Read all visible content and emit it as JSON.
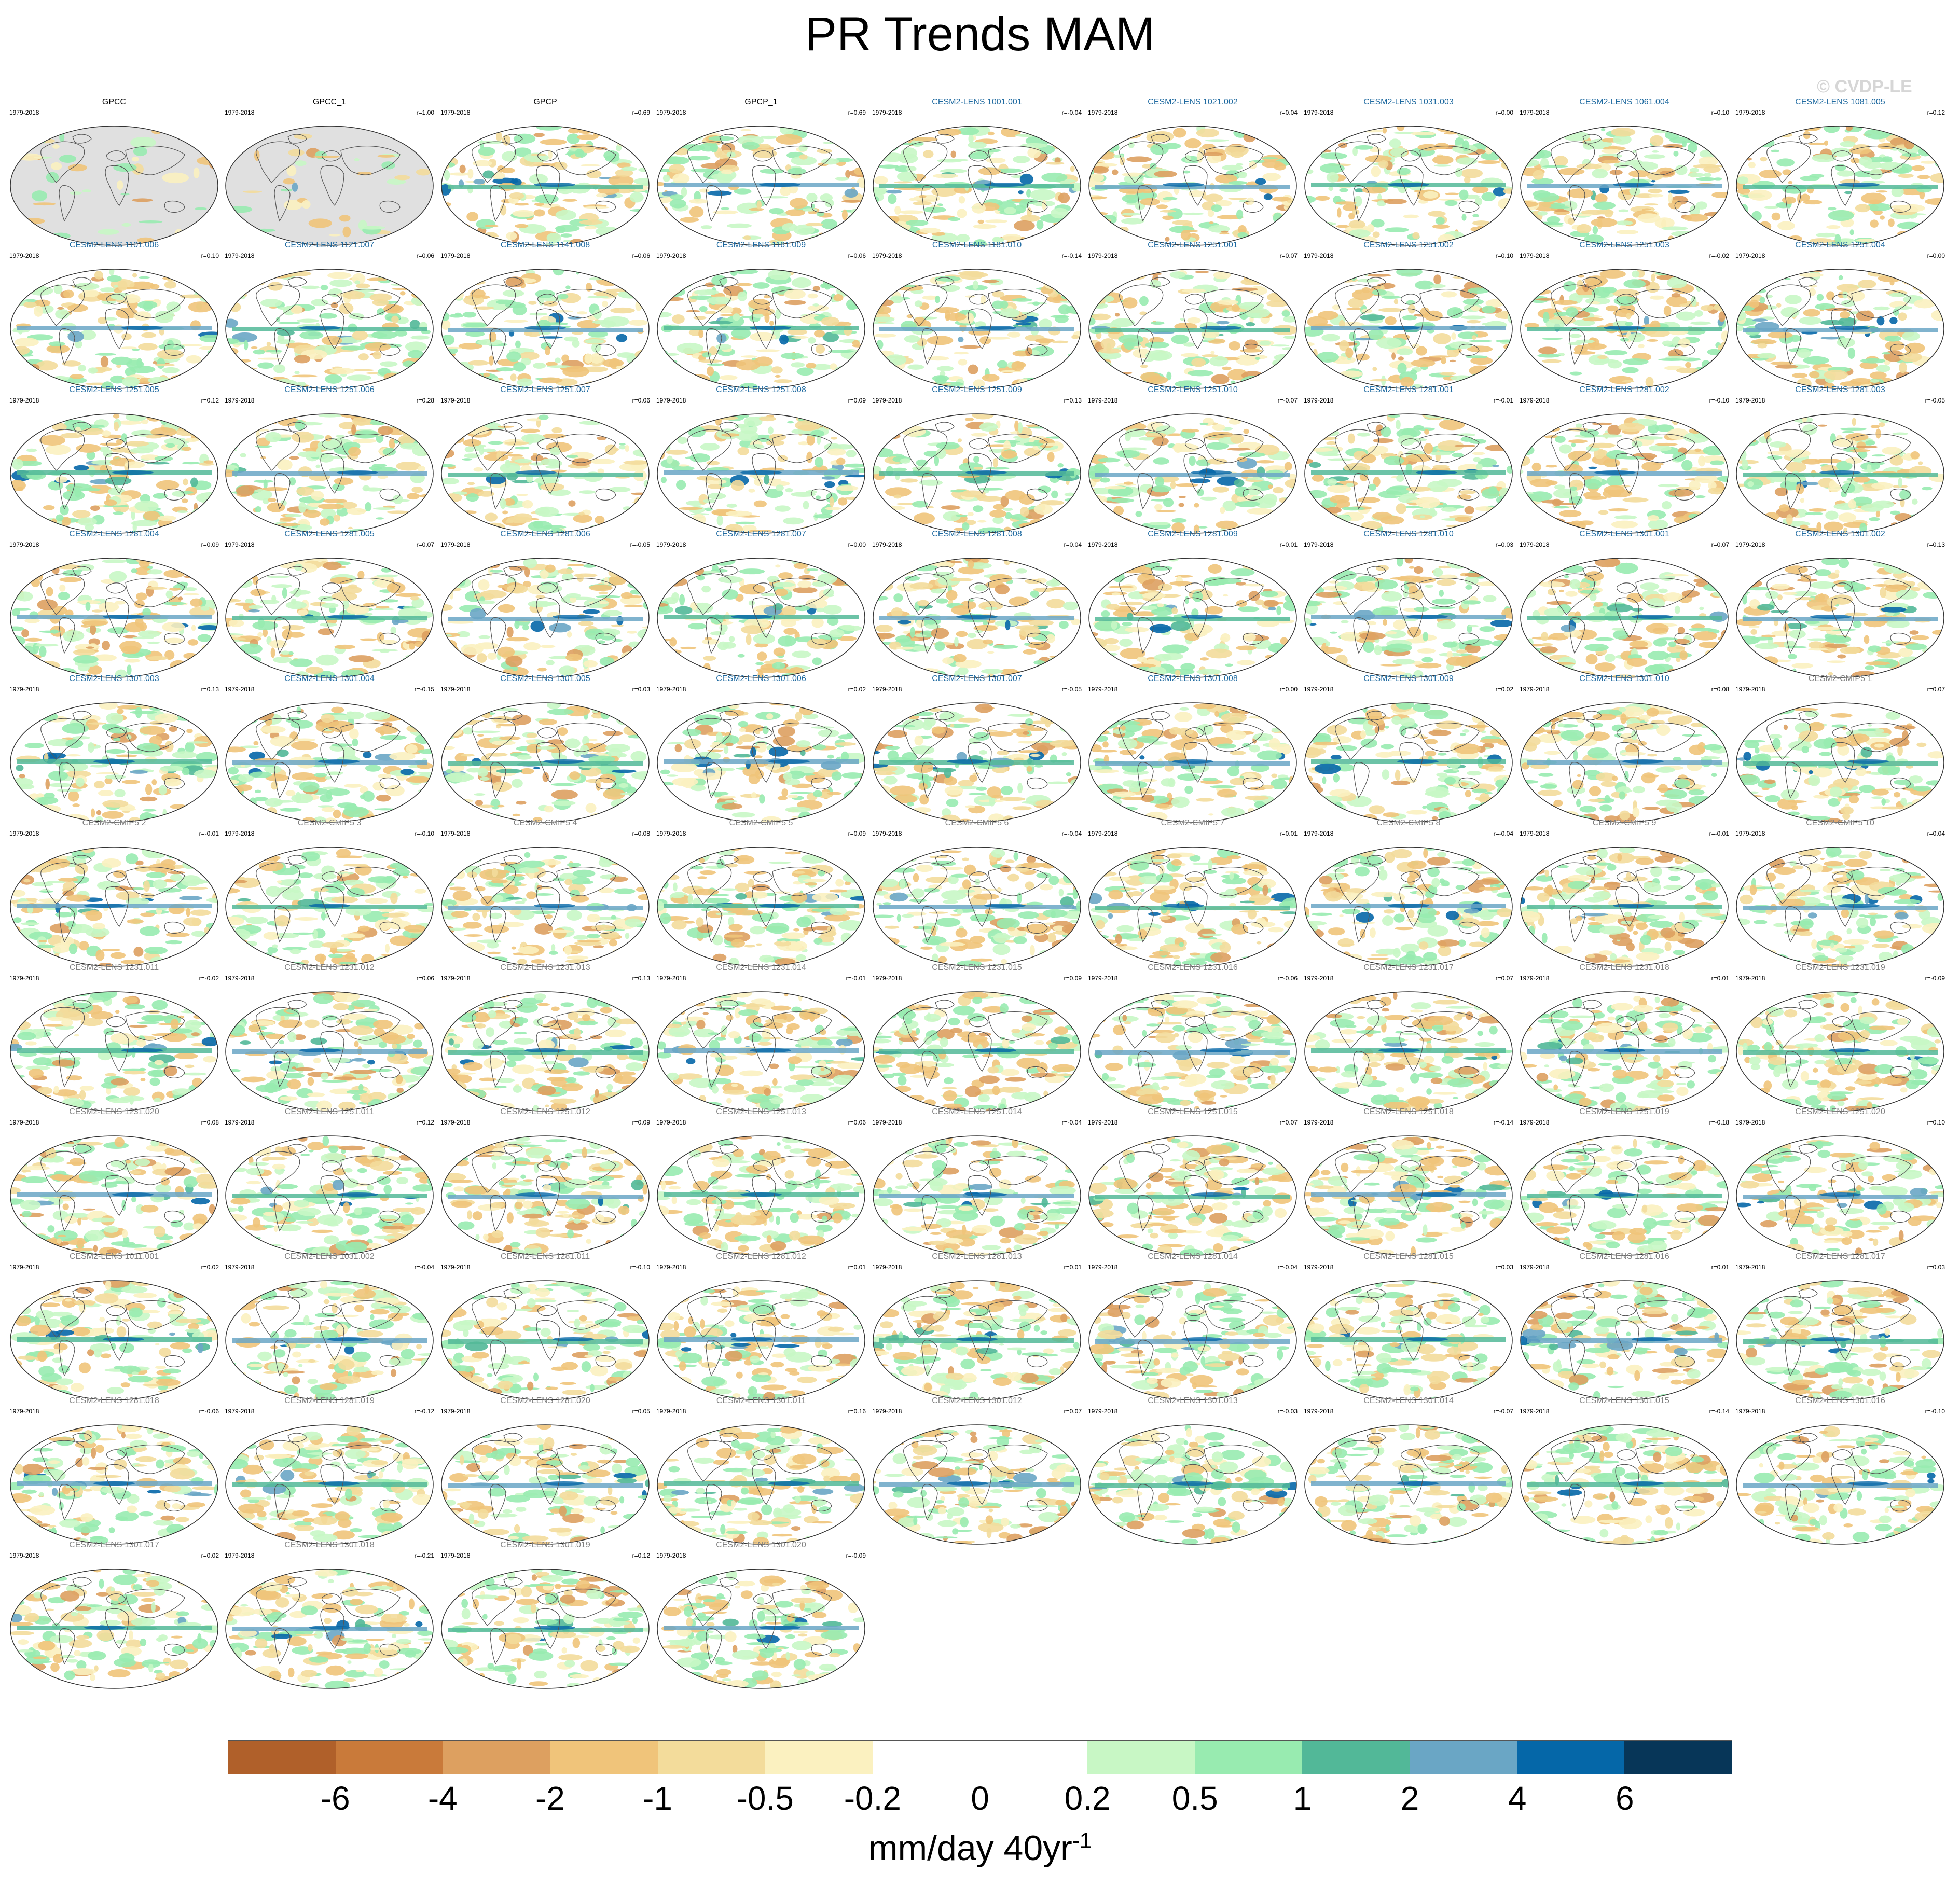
{
  "title": "PR Trends MAM",
  "watermark": "© CVDP-LE",
  "period": "1979-2018",
  "colors": {
    "obs_title": "#000000",
    "lens_title": "#1f6aa0",
    "other_title": "#808080",
    "land_missing": "#e0e0e0",
    "coast": "#555555"
  },
  "chart_data": {
    "type": "heatmap",
    "variable": "PR",
    "season": "MAM",
    "projection": "Robinson (global maps)",
    "colorbar": {
      "labels": [
        "-6",
        "-4",
        "-2",
        "-1",
        "-0.5",
        "-0.2",
        "0",
        "0.2",
        "0.5",
        "1",
        "2",
        "4",
        "6"
      ],
      "colors": [
        "#b0602a",
        "#c97a3a",
        "#dda060",
        "#f0c47a",
        "#f3dc9b",
        "#fbf1c0",
        "#ffffff",
        "#ffffff",
        "#c8f7c5",
        "#98ebb0",
        "#52b898",
        "#6aa6c5",
        "#0567a8",
        "#073658"
      ],
      "units": "mm/day 40yr",
      "units_superscript": "-1"
    },
    "panels": [
      {
        "name": "GPCC",
        "r": "",
        "group": "obs"
      },
      {
        "name": "GPCC_1",
        "r": "r=1.00",
        "group": "obs"
      },
      {
        "name": "GPCP",
        "r": "r=0.69",
        "group": "obs"
      },
      {
        "name": "GPCP_1",
        "r": "r=0.69",
        "group": "obs"
      },
      {
        "name": "CESM2-LENS 1001.001",
        "r": "r=-0.04",
        "group": "lens"
      },
      {
        "name": "CESM2-LENS 1021.002",
        "r": "r=0.04",
        "group": "lens"
      },
      {
        "name": "CESM2-LENS 1031.003",
        "r": "r=0.00",
        "group": "lens"
      },
      {
        "name": "CESM2-LENS 1061.004",
        "r": "r=0.10",
        "group": "lens"
      },
      {
        "name": "CESM2-LENS 1081.005",
        "r": "r=0.12",
        "group": "lens"
      },
      {
        "name": "CESM2-LENS 1101.006",
        "r": "r=0.10",
        "group": "lens"
      },
      {
        "name": "CESM2-LENS 1121.007",
        "r": "r=0.06",
        "group": "lens"
      },
      {
        "name": "CESM2-LENS 1141.008",
        "r": "r=0.06",
        "group": "lens"
      },
      {
        "name": "CESM2-LENS 1161.009",
        "r": "r=0.06",
        "group": "lens"
      },
      {
        "name": "CESM2-LENS 1181.010",
        "r": "r=-0.14",
        "group": "lens"
      },
      {
        "name": "CESM2-LENS 1251.001",
        "r": "r=0.07",
        "group": "lens"
      },
      {
        "name": "CESM2-LENS 1251.002",
        "r": "r=0.10",
        "group": "lens"
      },
      {
        "name": "CESM2-LENS 1251.003",
        "r": "r=-0.02",
        "group": "lens"
      },
      {
        "name": "CESM2-LENS 1251.004",
        "r": "r=0.00",
        "group": "lens"
      },
      {
        "name": "CESM2-LENS 1251.005",
        "r": "r=0.12",
        "group": "lens"
      },
      {
        "name": "CESM2-LENS 1251.006",
        "r": "r=0.28",
        "group": "lens"
      },
      {
        "name": "CESM2-LENS 1251.007",
        "r": "r=0.06",
        "group": "lens"
      },
      {
        "name": "CESM2-LENS 1251.008",
        "r": "r=0.09",
        "group": "lens"
      },
      {
        "name": "CESM2-LENS 1251.009",
        "r": "r=0.13",
        "group": "lens"
      },
      {
        "name": "CESM2-LENS 1251.010",
        "r": "r=-0.07",
        "group": "lens"
      },
      {
        "name": "CESM2-LENS 1281.001",
        "r": "r=-0.01",
        "group": "lens"
      },
      {
        "name": "CESM2-LENS 1281.002",
        "r": "r=-0.10",
        "group": "lens"
      },
      {
        "name": "CESM2-LENS 1281.003",
        "r": "r=-0.05",
        "group": "lens"
      },
      {
        "name": "CESM2-LENS 1281.004",
        "r": "r=0.09",
        "group": "lens"
      },
      {
        "name": "CESM2-LENS 1281.005",
        "r": "r=0.07",
        "group": "lens"
      },
      {
        "name": "CESM2-LENS 1281.006",
        "r": "r=-0.05",
        "group": "lens"
      },
      {
        "name": "CESM2-LENS 1281.007",
        "r": "r=0.00",
        "group": "lens"
      },
      {
        "name": "CESM2-LENS 1281.008",
        "r": "r=0.04",
        "group": "lens"
      },
      {
        "name": "CESM2-LENS 1281.009",
        "r": "r=0.01",
        "group": "lens"
      },
      {
        "name": "CESM2-LENS 1281.010",
        "r": "r=0.03",
        "group": "lens"
      },
      {
        "name": "CESM2-LENS 1301.001",
        "r": "r=0.07",
        "group": "lens"
      },
      {
        "name": "CESM2-LENS 1301.002",
        "r": "r=0.13",
        "group": "lens"
      },
      {
        "name": "CESM2-LENS 1301.003",
        "r": "r=0.13",
        "group": "lens"
      },
      {
        "name": "CESM2-LENS 1301.004",
        "r": "r=-0.15",
        "group": "lens"
      },
      {
        "name": "CESM2-LENS 1301.005",
        "r": "r=0.03",
        "group": "lens"
      },
      {
        "name": "CESM2-LENS 1301.006",
        "r": "r=0.02",
        "group": "lens"
      },
      {
        "name": "CESM2-LENS 1301.007",
        "r": "r=-0.05",
        "group": "lens"
      },
      {
        "name": "CESM2-LENS 1301.008",
        "r": "r=0.00",
        "group": "lens"
      },
      {
        "name": "CESM2-LENS 1301.009",
        "r": "r=0.02",
        "group": "lens"
      },
      {
        "name": "CESM2-LENS 1301.010",
        "r": "r=0.08",
        "group": "lens"
      },
      {
        "name": "CESM2-CMIP5 1",
        "r": "r=0.07",
        "group": "other"
      },
      {
        "name": "CESM2-CMIP5 2",
        "r": "r=-0.01",
        "group": "other"
      },
      {
        "name": "CESM2-CMIP5 3",
        "r": "r=-0.10",
        "group": "other"
      },
      {
        "name": "CESM2-CMIP5 4",
        "r": "r=0.08",
        "group": "other"
      },
      {
        "name": "CESM2-CMIP5 5",
        "r": "r=0.09",
        "group": "other"
      },
      {
        "name": "CESM2-CMIP5 6",
        "r": "r=-0.04",
        "group": "other"
      },
      {
        "name": "CESM2-CMIP5 7",
        "r": "r=0.01",
        "group": "other"
      },
      {
        "name": "CESM2-CMIP5 8",
        "r": "r=-0.04",
        "group": "other"
      },
      {
        "name": "CESM2-CMIP5 9",
        "r": "r=-0.01",
        "group": "other"
      },
      {
        "name": "CESM2-CMIP5 10",
        "r": "r=0.04",
        "group": "other"
      },
      {
        "name": "CESM2-LENS 1231.011",
        "r": "r=-0.02",
        "group": "other"
      },
      {
        "name": "CESM2-LENS 1231.012",
        "r": "r=0.06",
        "group": "other"
      },
      {
        "name": "CESM2-LENS 1231.013",
        "r": "r=0.13",
        "group": "other"
      },
      {
        "name": "CESM2-LENS 1231.014",
        "r": "r=-0.01",
        "group": "other"
      },
      {
        "name": "CESM2-LENS 1231.015",
        "r": "r=0.09",
        "group": "other"
      },
      {
        "name": "CESM2-LENS 1231.016",
        "r": "r=-0.06",
        "group": "other"
      },
      {
        "name": "CESM2-LENS 1231.017",
        "r": "r=0.07",
        "group": "other"
      },
      {
        "name": "CESM2-LENS 1231.018",
        "r": "r=0.01",
        "group": "other"
      },
      {
        "name": "CESM2-LENS 1231.019",
        "r": "r=-0.09",
        "group": "other"
      },
      {
        "name": "CESM2-LENS 1231.020",
        "r": "r=0.08",
        "group": "other"
      },
      {
        "name": "CESM2-LENS 1251.011",
        "r": "r=0.12",
        "group": "other"
      },
      {
        "name": "CESM2-LENS 1251.012",
        "r": "r=0.09",
        "group": "other"
      },
      {
        "name": "CESM2-LENS 1251.013",
        "r": "r=0.06",
        "group": "other"
      },
      {
        "name": "CESM2-LENS 1251.014",
        "r": "r=-0.04",
        "group": "other"
      },
      {
        "name": "CESM2-LENS 1251.015",
        "r": "r=0.07",
        "group": "other"
      },
      {
        "name": "CESM2-LENS 1251.018",
        "r": "r=-0.14",
        "group": "other"
      },
      {
        "name": "CESM2-LENS 1251.019",
        "r": "r=-0.18",
        "group": "other"
      },
      {
        "name": "CESM2-LENS 1251.020",
        "r": "r=0.10",
        "group": "other"
      },
      {
        "name": "CESM2-LENS 1011.001",
        "r": "r=0.02",
        "group": "other"
      },
      {
        "name": "CESM2-LENS 1031.002",
        "r": "r=-0.04",
        "group": "other"
      },
      {
        "name": "CESM2-LENS 1281.011",
        "r": "r=-0.10",
        "group": "other"
      },
      {
        "name": "CESM2-LENS 1281.012",
        "r": "r=0.01",
        "group": "other"
      },
      {
        "name": "CESM2-LENS 1281.013",
        "r": "r=0.01",
        "group": "other"
      },
      {
        "name": "CESM2-LENS 1281.014",
        "r": "r=-0.04",
        "group": "other"
      },
      {
        "name": "CESM2-LENS 1281.015",
        "r": "r=0.03",
        "group": "other"
      },
      {
        "name": "CESM2-LENS 1281.016",
        "r": "r=0.01",
        "group": "other"
      },
      {
        "name": "CESM2-LENS 1281.017",
        "r": "r=0.03",
        "group": "other"
      },
      {
        "name": "CESM2-LENS 1281.018",
        "r": "r=-0.06",
        "group": "other"
      },
      {
        "name": "CESM2-LENS 1281.019",
        "r": "r=-0.12",
        "group": "other"
      },
      {
        "name": "CESM2-LENS 1281.020",
        "r": "r=0.05",
        "group": "other"
      },
      {
        "name": "CESM2-LENS 1301.011",
        "r": "r=0.16",
        "group": "other"
      },
      {
        "name": "CESM2-LENS 1301.012",
        "r": "r=0.07",
        "group": "other"
      },
      {
        "name": "CESM2-LENS 1301.013",
        "r": "r=-0.03",
        "group": "other"
      },
      {
        "name": "CESM2-LENS 1301.014",
        "r": "r=-0.07",
        "group": "other"
      },
      {
        "name": "CESM2-LENS 1301.015",
        "r": "r=-0.14",
        "group": "other"
      },
      {
        "name": "CESM2-LENS 1301.016",
        "r": "r=-0.10",
        "group": "other"
      },
      {
        "name": "CESM2-LENS 1301.017",
        "r": "r=0.02",
        "group": "other"
      },
      {
        "name": "CESM2-LENS 1301.018",
        "r": "r=-0.21",
        "group": "other"
      },
      {
        "name": "CESM2-LENS 1301.019",
        "r": "r=0.12",
        "group": "other"
      },
      {
        "name": "CESM2-LENS 1301.020",
        "r": "r=-0.09",
        "group": "other"
      }
    ]
  }
}
